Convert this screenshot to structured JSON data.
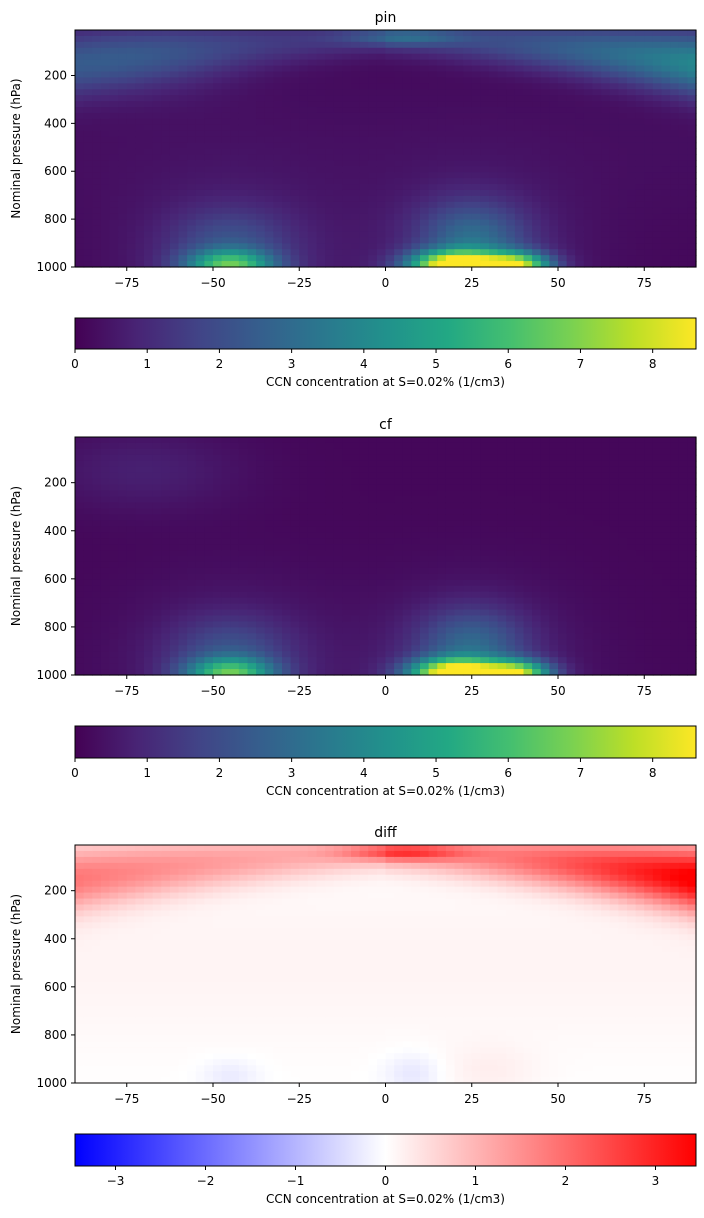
{
  "chart_data": [
    {
      "type": "heatmap",
      "title": "pin",
      "xlabel": "",
      "ylabel": "Nominal pressure (hPa)",
      "xlim": [
        -90,
        90
      ],
      "ylim": [
        1000,
        10
      ],
      "x_ticks": [
        -75,
        -50,
        -25,
        0,
        25,
        50,
        75
      ],
      "y_ticks": [
        200,
        400,
        600,
        800,
        1000
      ],
      "colormap": "viridis",
      "colorbar": {
        "label": "CCN concentration at S=0.02% (1/cm3)",
        "range": [
          0,
          8.6
        ],
        "ticks": [
          0,
          1,
          2,
          3,
          4,
          5,
          6,
          7,
          8
        ]
      },
      "features": [
        {
          "lat": -45,
          "p": 990,
          "value": 5.0
        },
        {
          "lat": 22,
          "p": 985,
          "value": 8.4
        },
        {
          "lat": 38,
          "p": 990,
          "value": 6.5
        },
        {
          "lat": 70,
          "p": 110,
          "value": 4.0
        },
        {
          "lat": 0,
          "p": 40,
          "value": 3.5
        }
      ]
    },
    {
      "type": "heatmap",
      "title": "cf",
      "xlabel": "",
      "ylabel": "Nominal pressure (hPa)",
      "xlim": [
        -90,
        90
      ],
      "ylim": [
        1000,
        10
      ],
      "x_ticks": [
        -75,
        -50,
        -25,
        0,
        25,
        50,
        75
      ],
      "y_ticks": [
        200,
        400,
        600,
        800,
        1000
      ],
      "colormap": "viridis",
      "colorbar": {
        "label": "CCN concentration at S=0.02% (1/cm3)",
        "range": [
          0,
          8.6
        ],
        "ticks": [
          0,
          1,
          2,
          3,
          4,
          5,
          6,
          7,
          8
        ]
      },
      "features": [
        {
          "lat": -45,
          "p": 990,
          "value": 5.0
        },
        {
          "lat": 22,
          "p": 985,
          "value": 8.4
        },
        {
          "lat": 38,
          "p": 990,
          "value": 6.5
        }
      ]
    },
    {
      "type": "heatmap",
      "title": "diff",
      "xlabel": "",
      "ylabel": "Nominal pressure (hPa)",
      "xlim": [
        -90,
        90
      ],
      "ylim": [
        1000,
        10
      ],
      "x_ticks": [
        -75,
        -50,
        -25,
        0,
        25,
        50,
        75
      ],
      "y_ticks": [
        200,
        400,
        600,
        800,
        1000
      ],
      "colormap": "bwr",
      "colorbar": {
        "label": "CCN concentration at S=0.02% (1/cm3)",
        "range": [
          -3.45,
          3.45
        ],
        "ticks": [
          -3,
          -2,
          -1,
          0,
          1,
          2,
          3
        ]
      },
      "features": [
        {
          "lat": 70,
          "p": 120,
          "value": 3.4
        },
        {
          "lat": 5,
          "p": 40,
          "value": 3.0
        },
        {
          "lat": -80,
          "p": 140,
          "value": 1.5
        },
        {
          "lat": 8,
          "p": 960,
          "value": -0.3
        }
      ]
    }
  ]
}
